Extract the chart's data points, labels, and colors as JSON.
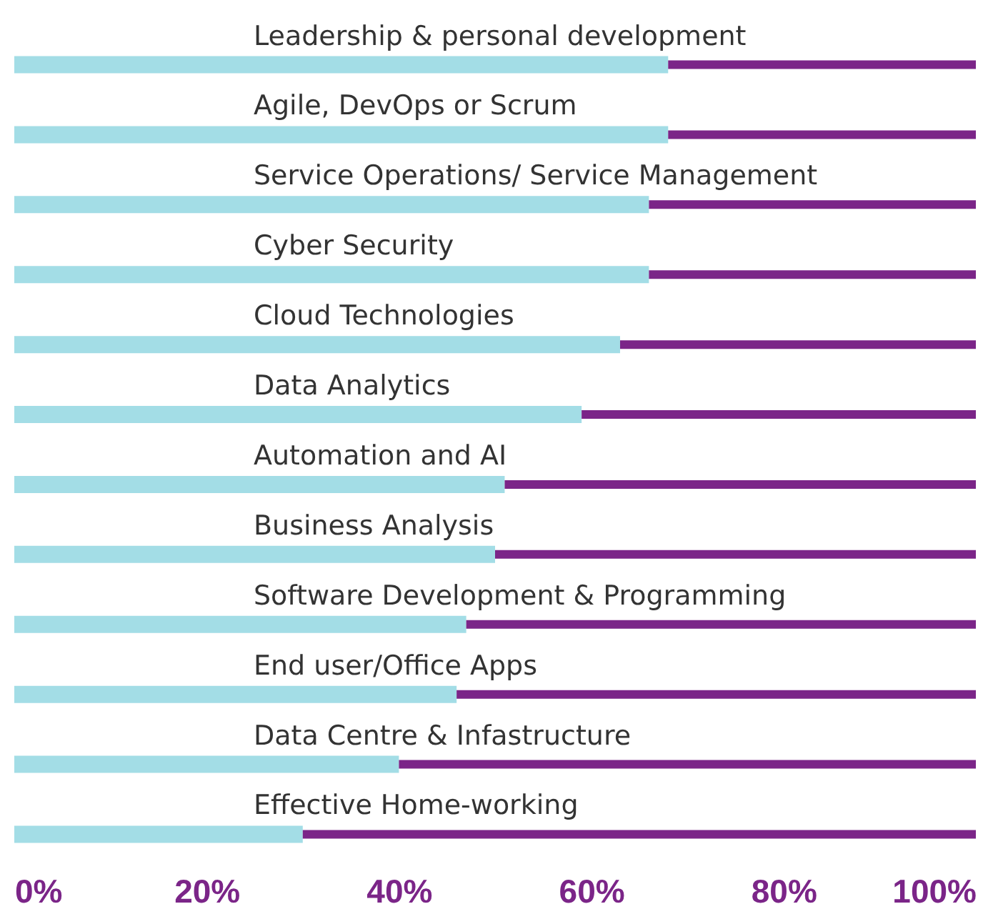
{
  "chart_data": {
    "type": "bar",
    "orientation": "horizontal",
    "stacked": true,
    "legend": false,
    "grid": false,
    "categories": [
      "Leadership & personal development",
      "Agile, DevOps or Scrum",
      "Service Operations/ Service Management",
      "Cyber Security",
      "Cloud Technologies",
      "Data Analytics",
      "Automation and AI",
      "Business Analysis",
      "Software Development & Programming",
      "End user/Office Apps",
      "Data Centre & Infastructure",
      "Effective Home-working"
    ],
    "series": [
      {
        "color": "#a3dde6",
        "values": [
          68,
          68,
          66,
          66,
          63,
          59,
          51,
          50,
          47,
          46,
          40,
          30
        ]
      },
      {
        "color": "#7b2588",
        "values": [
          32,
          32,
          34,
          34,
          37,
          41,
          49,
          50,
          53,
          54,
          60,
          70
        ]
      }
    ],
    "xlim": [
      0,
      100
    ],
    "xticks": [
      {
        "value": 0,
        "label": "0%"
      },
      {
        "value": 20,
        "label": "20%"
      },
      {
        "value": 40,
        "label": "40%"
      },
      {
        "value": 60,
        "label": "60%"
      },
      {
        "value": 80,
        "label": "80%"
      },
      {
        "value": 100,
        "label": "100%"
      }
    ]
  }
}
